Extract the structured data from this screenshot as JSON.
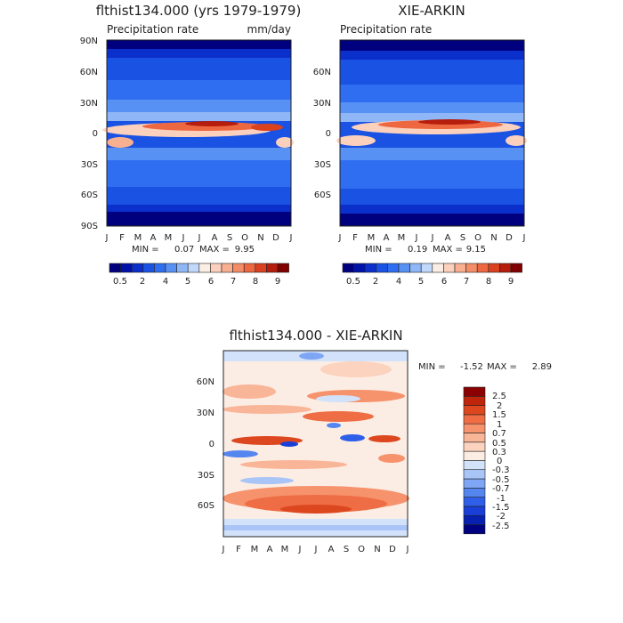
{
  "colors": {
    "abs_levels": [
      "#00007f",
      "#0012a8",
      "#0b2fcb",
      "#1a52e3",
      "#2f6ef0",
      "#5891f4",
      "#8fb6f7",
      "#c2d8fa",
      "#fbeee4",
      "#fbd0bd",
      "#f9b091",
      "#f58c68",
      "#ed6740",
      "#d9411f",
      "#b51d0d",
      "#800000"
    ],
    "diff_levels": [
      "#000080",
      "#0720b0",
      "#1a3fd8",
      "#2f5fe9",
      "#5586f0",
      "#7ea6f4",
      "#a9c4f7",
      "#d2e2fa",
      "#fcede4",
      "#fbd3bf",
      "#f9b597",
      "#f6926c",
      "#ef6d44",
      "#dc4720",
      "#bf250b",
      "#8b0000"
    ],
    "frame": "#222222"
  },
  "chart_data": [
    {
      "type": "heatmap",
      "title": "flthist134.000 (yrs 1979-1979)",
      "subtitle_left": "Precipitation rate",
      "subtitle_right": "mm/day",
      "x_tick_labels": [
        "J",
        "F",
        "M",
        "A",
        "M",
        "J",
        "J",
        "A",
        "S",
        "O",
        "N",
        "D",
        "J"
      ],
      "y_tick_labels": [
        "90N",
        "60N",
        "30N",
        "0",
        "30S",
        "60S",
        "90S"
      ],
      "ylim": [
        -90,
        90
      ],
      "stats": {
        "min_label": "MIN =",
        "min": "0.07",
        "max_label": "MAX =",
        "max": "9.95"
      },
      "colorbar": {
        "orientation": "horizontal",
        "tick_labels": [
          "0.5",
          "2",
          "4",
          "5",
          "6",
          "7",
          "8",
          "9"
        ]
      }
    },
    {
      "type": "heatmap",
      "title": "XIE-ARKIN",
      "subtitle_left": "Precipitation rate",
      "x_tick_labels": [
        "J",
        "F",
        "M",
        "A",
        "M",
        "J",
        "J",
        "A",
        "S",
        "O",
        "N",
        "D",
        "J"
      ],
      "y_tick_labels": [
        "60N",
        "30N",
        "0",
        "30S",
        "60S"
      ],
      "ylim": [
        -90,
        90
      ],
      "stats": {
        "min_label": "MIN =",
        "min": "0.19",
        "max_label": "MAX =",
        "max": "9.15"
      },
      "colorbar": {
        "orientation": "horizontal",
        "tick_labels": [
          "0.5",
          "2",
          "4",
          "5",
          "6",
          "7",
          "8",
          "9"
        ]
      }
    },
    {
      "type": "heatmap",
      "title": "flthist134.000 - XIE-ARKIN",
      "x_tick_labels": [
        "J",
        "F",
        "M",
        "A",
        "M",
        "J",
        "J",
        "A",
        "S",
        "O",
        "N",
        "D",
        "J"
      ],
      "y_tick_labels": [
        "60N",
        "30N",
        "0",
        "30S",
        "60S"
      ],
      "ylim": [
        -90,
        90
      ],
      "stats": {
        "min_label": "MIN =",
        "min": "-1.52",
        "max_label": "MAX =",
        "max": "2.89"
      },
      "colorbar": {
        "orientation": "vertical",
        "tick_labels": [
          "2.5",
          "2",
          "1.5",
          "1",
          "0.7",
          "0.5",
          "0.3",
          "0",
          "-0.3",
          "-0.5",
          "-0.7",
          "-1",
          "-1.5",
          "-2",
          "-2.5"
        ]
      }
    }
  ]
}
